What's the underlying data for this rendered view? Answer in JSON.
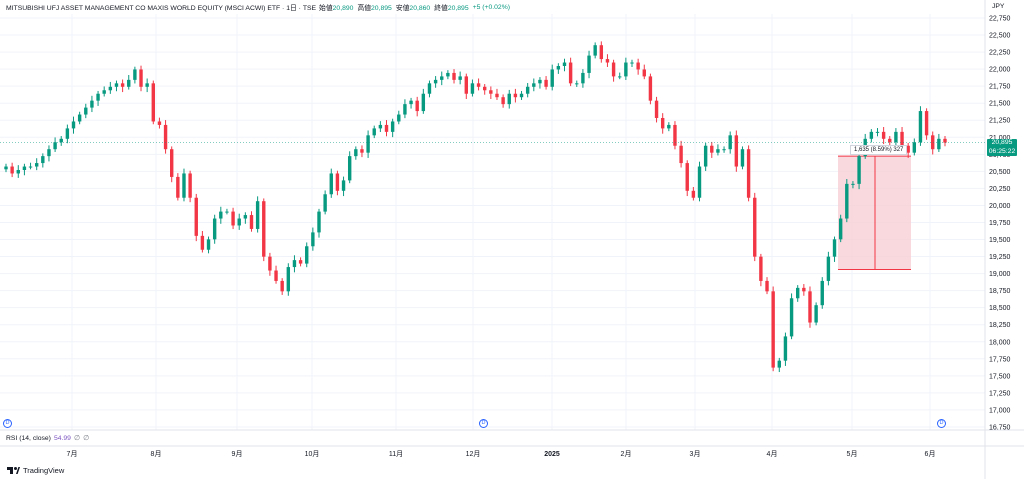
{
  "header": {
    "title": "MITSUBISHI UFJ ASSET MANAGEMENT CO MAXIS WORLD EQUITY (MSCI ACWI) ETF · 1日 · TSE",
    "ohlc": [
      {
        "label": "始値",
        "value": "20,890"
      },
      {
        "label": "高値",
        "value": "20,895"
      },
      {
        "label": "安値",
        "value": "20,860"
      },
      {
        "label": "終値",
        "value": "20,895"
      }
    ],
    "change": "+5 (+0.02%)",
    "currency": "JPY"
  },
  "last_price": {
    "value": "20,895",
    "countdown": "06:25:22"
  },
  "indicator": {
    "label": "RSI (14, close)",
    "value": "54.99",
    "icons": [
      "∅",
      "∅"
    ]
  },
  "measure_label": "1,635 (8.59%) 327",
  "dividend_markers": [
    "D",
    "D",
    "D"
  ],
  "brand": "TradingView",
  "colors": {
    "up": "#089981",
    "down": "#f23645",
    "badge": "#089981",
    "measure_fill": "#f8d0d4",
    "measure_border": "#f23645"
  },
  "chart_data": {
    "type": "candlestick",
    "y_ticks": [
      "22,750",
      "22,500",
      "22,250",
      "22,000",
      "21,750",
      "21,500",
      "21,250",
      "21,000",
      "20,750",
      "20,500",
      "20,250",
      "20,000",
      "19,750",
      "19,500",
      "19,250",
      "19,000",
      "18,750",
      "18,500",
      "18,250",
      "18,000",
      "17,750",
      "17,500",
      "17,250",
      "17,000",
      "16,750"
    ],
    "x_ticks": [
      "7月",
      "8月",
      "9月",
      "10月",
      "11月",
      "12月",
      "2025",
      "2月",
      "3月",
      "4月",
      "5月",
      "6月"
    ],
    "ylim": [
      16750,
      22750
    ],
    "grid": true,
    "closes": [
      20550,
      20450,
      20500,
      20550,
      20550,
      20600,
      20700,
      20800,
      20900,
      20950,
      21100,
      21200,
      21300,
      21400,
      21500,
      21600,
      21650,
      21700,
      21750,
      21700,
      21800,
      21950,
      21700,
      21750,
      21200,
      21150,
      20800,
      20400,
      20100,
      20450,
      20100,
      19550,
      19350,
      19500,
      19800,
      19900,
      19900,
      19700,
      19800,
      19850,
      19650,
      20050,
      19250,
      19050,
      18900,
      18750,
      19100,
      19200,
      19150,
      19400,
      19600,
      19900,
      20150,
      20450,
      20200,
      20350,
      20700,
      20800,
      20750,
      21000,
      21100,
      21150,
      21050,
      21200,
      21300,
      21450,
      21500,
      21350,
      21600,
      21750,
      21800,
      21850,
      21900,
      21800,
      21850,
      21600,
      21750,
      21700,
      21650,
      21600,
      21550,
      21450,
      21600,
      21550,
      21600,
      21700,
      21750,
      21800,
      21700,
      21950,
      22000,
      22050,
      21750,
      21750,
      21900,
      22150,
      22300,
      22100,
      22050,
      21850,
      21850,
      22050,
      22050,
      21950,
      21850,
      21500,
      21250,
      21100,
      21150,
      20850,
      20600,
      20200,
      20100,
      20550,
      20850,
      20750,
      20800,
      20800,
      21000,
      20550,
      20800,
      20100,
      19250,
      18900,
      18750,
      17650,
      17750,
      18100,
      18650,
      18800,
      18750,
      18300,
      18550,
      18900,
      19250,
      19500,
      19800,
      20300,
      20300,
      20700,
      20950,
      21050,
      21050,
      20950,
      20900,
      21050,
      20850,
      20750,
      20900,
      21350,
      21000,
      20800,
      20950,
      20895
    ]
  }
}
